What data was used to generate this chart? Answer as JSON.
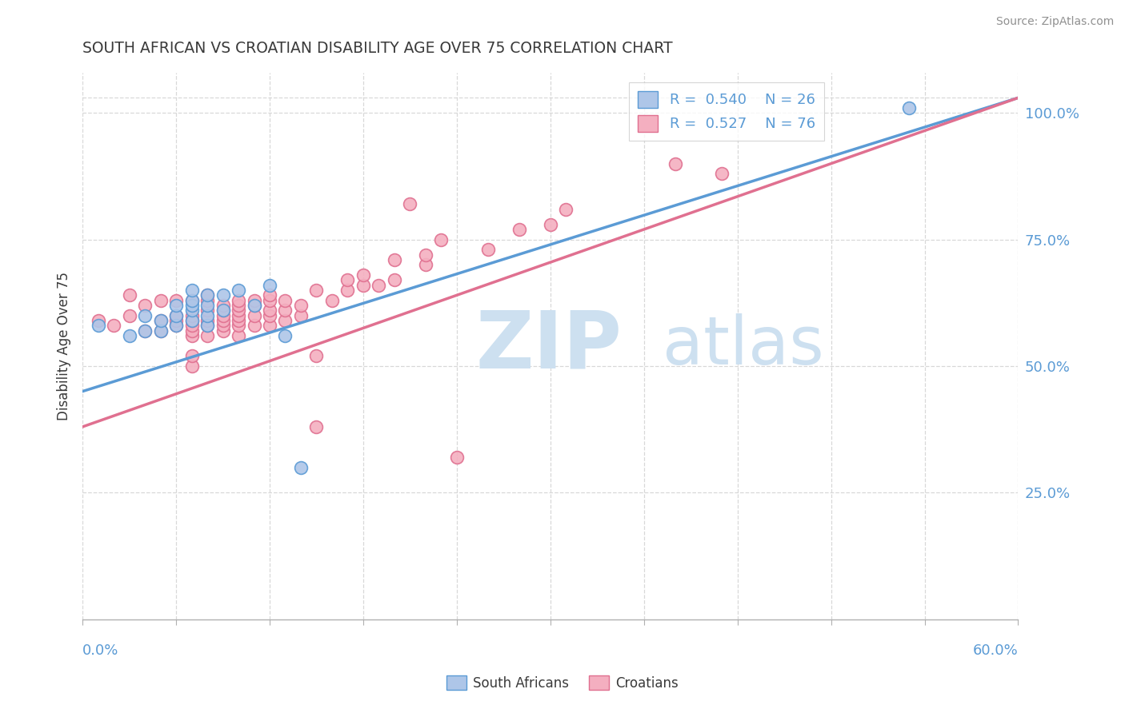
{
  "title": "SOUTH AFRICAN VS CROATIAN DISABILITY AGE OVER 75 CORRELATION CHART",
  "source_text": "Source: ZipAtlas.com",
  "ylabel": "Disability Age Over 75",
  "ylabel_right_ticks": [
    0.25,
    0.5,
    0.75,
    1.0
  ],
  "ylabel_right_labels": [
    "25.0%",
    "50.0%",
    "75.0%",
    "100.0%"
  ],
  "xmin": 0.0,
  "xmax": 0.6,
  "ymin": 0.0,
  "ymax": 1.08,
  "south_african_R": 0.54,
  "south_african_N": 26,
  "croatian_R": 0.527,
  "croatian_N": 76,
  "blue_color": "#aec6e8",
  "blue_line_color": "#5b9bd5",
  "pink_color": "#f4afc0",
  "pink_line_color": "#e07090",
  "title_color": "#3a3a3a",
  "source_color": "#909090",
  "axis_label_color": "#5b9bd5",
  "grid_color": "#d8d8d8",
  "watermark_color": "#cde0f0",
  "south_africans_x": [
    0.01,
    0.03,
    0.04,
    0.04,
    0.05,
    0.05,
    0.06,
    0.06,
    0.06,
    0.07,
    0.07,
    0.07,
    0.07,
    0.07,
    0.08,
    0.08,
    0.08,
    0.08,
    0.09,
    0.09,
    0.1,
    0.11,
    0.12,
    0.13,
    0.14,
    0.53
  ],
  "south_africans_y": [
    0.58,
    0.56,
    0.57,
    0.6,
    0.57,
    0.59,
    0.58,
    0.6,
    0.62,
    0.59,
    0.61,
    0.62,
    0.63,
    0.65,
    0.58,
    0.6,
    0.62,
    0.64,
    0.61,
    0.64,
    0.65,
    0.62,
    0.66,
    0.56,
    0.3,
    1.01
  ],
  "croatians_x": [
    0.01,
    0.02,
    0.03,
    0.03,
    0.04,
    0.04,
    0.05,
    0.05,
    0.05,
    0.06,
    0.06,
    0.06,
    0.06,
    0.07,
    0.07,
    0.07,
    0.07,
    0.07,
    0.07,
    0.07,
    0.07,
    0.08,
    0.08,
    0.08,
    0.08,
    0.08,
    0.08,
    0.09,
    0.09,
    0.09,
    0.09,
    0.09,
    0.09,
    0.1,
    0.1,
    0.1,
    0.1,
    0.1,
    0.1,
    0.1,
    0.11,
    0.11,
    0.11,
    0.11,
    0.12,
    0.12,
    0.12,
    0.12,
    0.12,
    0.13,
    0.13,
    0.13,
    0.14,
    0.14,
    0.15,
    0.15,
    0.15,
    0.16,
    0.17,
    0.17,
    0.18,
    0.18,
    0.19,
    0.2,
    0.2,
    0.21,
    0.22,
    0.22,
    0.23,
    0.24,
    0.26,
    0.28,
    0.3,
    0.31,
    0.38,
    0.41
  ],
  "croatians_y": [
    0.59,
    0.58,
    0.6,
    0.64,
    0.57,
    0.62,
    0.57,
    0.59,
    0.63,
    0.58,
    0.59,
    0.6,
    0.63,
    0.5,
    0.52,
    0.56,
    0.57,
    0.58,
    0.59,
    0.6,
    0.63,
    0.56,
    0.58,
    0.59,
    0.61,
    0.63,
    0.64,
    0.57,
    0.58,
    0.59,
    0.6,
    0.61,
    0.62,
    0.56,
    0.58,
    0.59,
    0.6,
    0.61,
    0.62,
    0.63,
    0.58,
    0.6,
    0.62,
    0.63,
    0.58,
    0.6,
    0.61,
    0.63,
    0.64,
    0.59,
    0.61,
    0.63,
    0.6,
    0.62,
    0.38,
    0.52,
    0.65,
    0.63,
    0.65,
    0.67,
    0.66,
    0.68,
    0.66,
    0.67,
    0.71,
    0.82,
    0.7,
    0.72,
    0.75,
    0.32,
    0.73,
    0.77,
    0.78,
    0.81,
    0.9,
    0.88
  ],
  "blue_trend_x0": 0.0,
  "blue_trend_y0": 0.45,
  "blue_trend_x1": 0.6,
  "blue_trend_y1": 1.03,
  "pink_trend_x0": 0.0,
  "pink_trend_y0": 0.38,
  "pink_trend_x1": 0.6,
  "pink_trend_y1": 1.03
}
